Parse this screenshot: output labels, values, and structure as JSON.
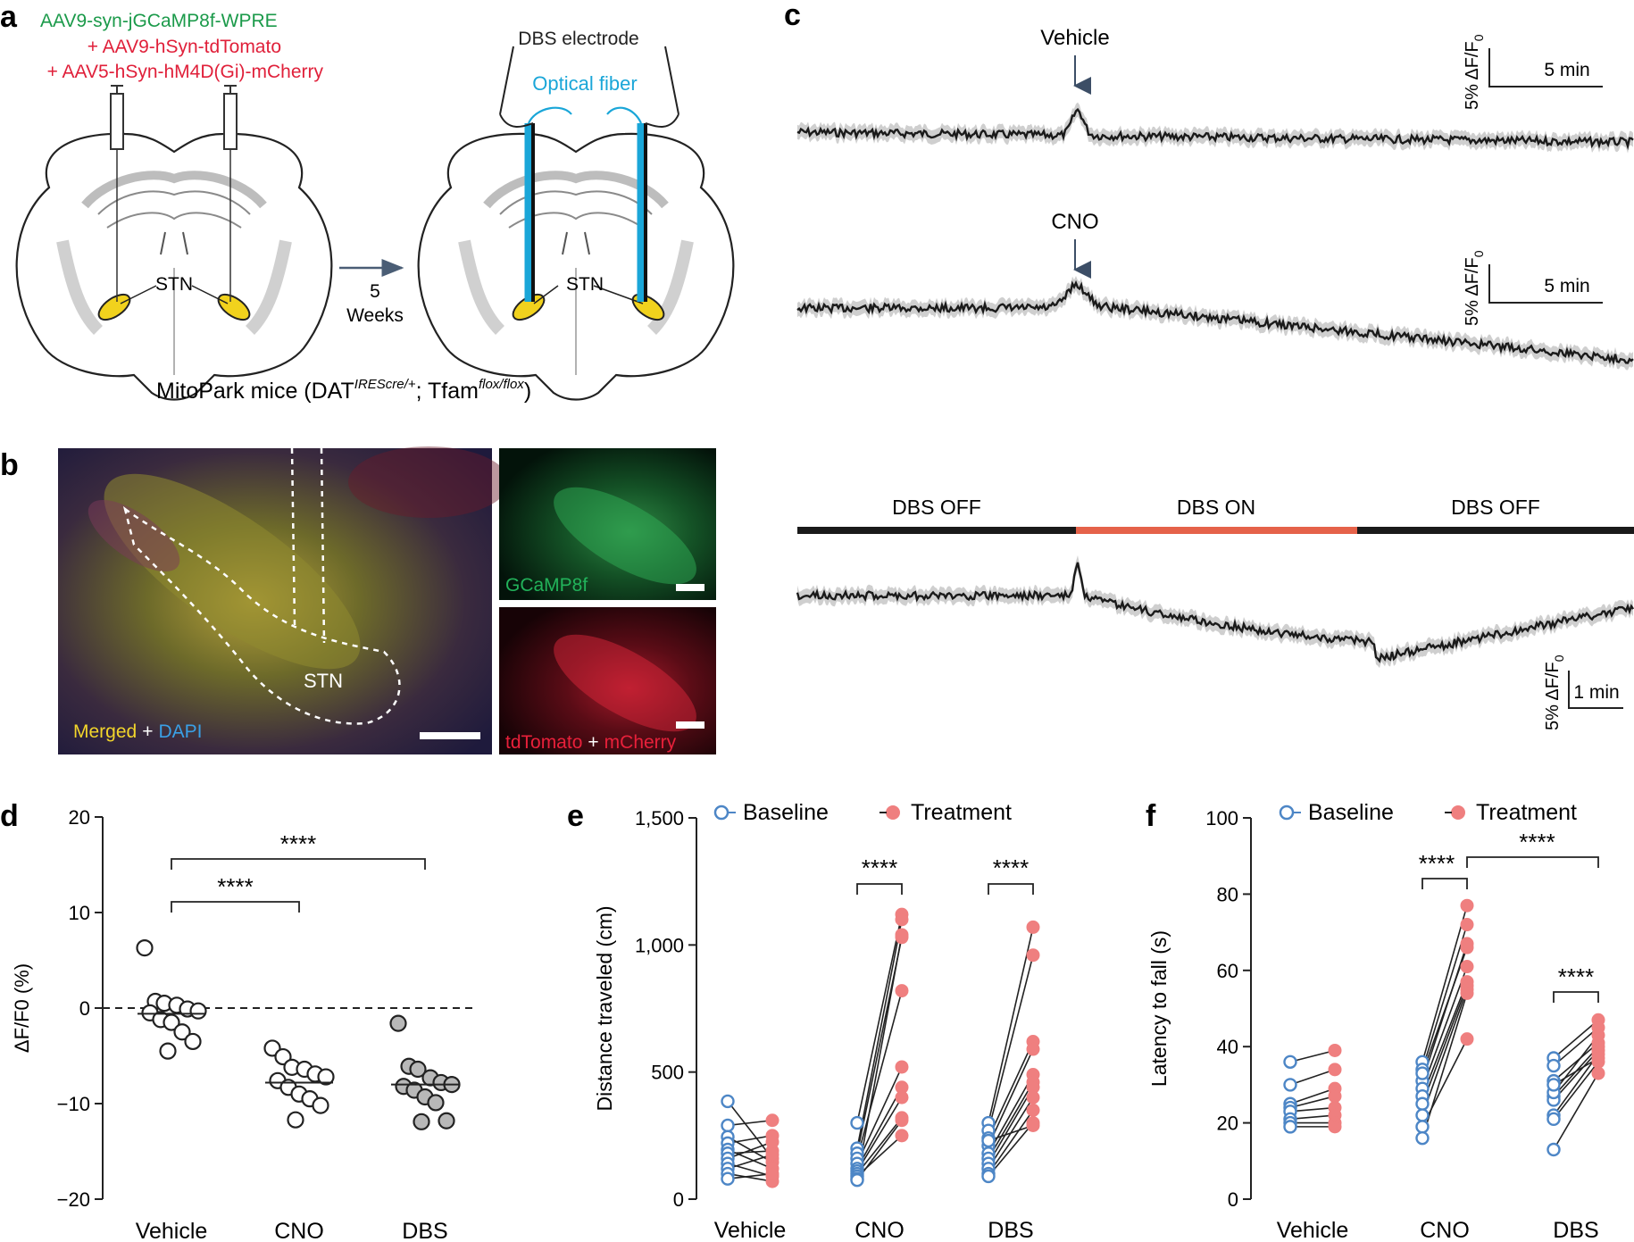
{
  "panel_labels": {
    "a": "a",
    "b": "b",
    "c": "c",
    "d": "d",
    "e": "e",
    "f": "f"
  },
  "panel_a": {
    "virus_1": "AAV9-syn-jGCaMP8f-WPRE",
    "virus_2": "+ AAV9-hSyn-tdTomato",
    "virus_3": "+ AAV5-hSyn-hM4D(Gi)-mCherry",
    "dbs_electrode": "DBS electrode",
    "optical_fiber": "Optical fiber",
    "stn_left": "STN",
    "stn_right": "STN",
    "arrow_num": "5",
    "arrow_unit": "Weeks",
    "mice_prefix": "MitoPark mice (DAT",
    "mice_sup1": "IREScre/+",
    "mice_mid": "; Tfam",
    "mice_sup2": "flox/flox",
    "mice_suffix": ")",
    "colors": {
      "green": "#1b9a4a",
      "red": "#e0203a",
      "cyan": "#1aa6d8",
      "stn": "#f1d21d"
    }
  },
  "panel_b": {
    "stn": "STN",
    "merged": "Merged",
    "plus1": "+",
    "dapi": "DAPI",
    "gcamp": "GCaMP8f",
    "tdtomato": "tdTomato",
    "plus2": "+",
    "mcherry": "mCherry",
    "colors": {
      "merged": "#f2d52b",
      "dapi": "#3aa0e6",
      "gcamp": "#22b25a",
      "tdtomato": "#e8203a"
    }
  },
  "panel_c": {
    "trace1_label": "Vehicle",
    "trace2_label": "CNO",
    "scale_y": "5% ΔF/F",
    "scale_y_sub": "0",
    "scale_x_1": "5 min",
    "scale_x_2": "5 min",
    "scale_x_3": "1 min",
    "dbs_off_1": "DBS OFF",
    "dbs_on": "DBS ON",
    "dbs_off_2": "DBS OFF",
    "colors": {
      "dbs_on_bar": "#e5624a",
      "trace": "#1a1a1a",
      "sem": "#cfcfcf"
    }
  },
  "chart_data": [
    {
      "panel": "d",
      "type": "scatter",
      "categories": [
        "Vehicle",
        "CNO",
        "DBS"
      ],
      "ylabel": "ΔF/F0 (%)",
      "ylim": [
        -20,
        20
      ],
      "yticks": [
        "20",
        "10",
        "0",
        "−10",
        "−20"
      ],
      "series": [
        {
          "category": "Vehicle",
          "fill": "#ffffff",
          "values": [
            6.3,
            0.7,
            0.5,
            0.3,
            -0.1,
            -0.3,
            -0.5,
            -1.2,
            -1.5,
            -2.5,
            -3.5,
            -4.5
          ],
          "mean": -0.6
        },
        {
          "category": "CNO",
          "fill": "#ffffff",
          "values": [
            -4.2,
            -5.1,
            -6.2,
            -6.4,
            -6.9,
            -7.2,
            -7.6,
            -8.3,
            -9.0,
            -9.5,
            -10.2,
            -11.7
          ],
          "mean": -7.8
        },
        {
          "category": "DBS",
          "fill": "#b8b8b8",
          "values": [
            -1.6,
            -6.1,
            -6.4,
            -7.3,
            -7.8,
            -8.0,
            -8.2,
            -8.6,
            -9.3,
            -9.9,
            -11.8,
            -11.9
          ],
          "mean": -8.0
        }
      ],
      "annotations": [
        {
          "pair": [
            "Vehicle",
            "CNO"
          ],
          "label": "****"
        },
        {
          "pair": [
            "Vehicle",
            "DBS"
          ],
          "label": "****"
        }
      ],
      "zero_line": "dashed"
    },
    {
      "panel": "e",
      "type": "line",
      "categories": [
        "Vehicle",
        "CNO",
        "DBS"
      ],
      "ylabel": "Distance traveled (cm)",
      "ylim": [
        0,
        1500
      ],
      "yticks": [
        "1,500",
        "1,000",
        "500",
        "0"
      ],
      "legend": [
        "Baseline",
        "Treatment"
      ],
      "legend_placement": "top",
      "colors": {
        "baseline": "#4d86c6",
        "treatment": "#ef7f7f"
      },
      "paired": [
        {
          "category": "Vehicle",
          "baseline": [
            385,
            290,
            245,
            220,
            195,
            180,
            160,
            140,
            120,
            100,
            80
          ],
          "treatment": [
            160,
            310,
            145,
            250,
            120,
            190,
            225,
            90,
            175,
            70,
            100
          ]
        },
        {
          "category": "CNO",
          "baseline": [
            300,
            200,
            180,
            160,
            140,
            120,
            110,
            100,
            90,
            80,
            75
          ],
          "treatment": [
            1120,
            1100,
            1030,
            820,
            520,
            440,
            400,
            320,
            250,
            1040,
            310
          ]
        },
        {
          "category": "DBS",
          "baseline": [
            300,
            270,
            240,
            210,
            180,
            160,
            140,
            120,
            100,
            90,
            230
          ],
          "treatment": [
            1070,
            960,
            620,
            590,
            490,
            460,
            440,
            400,
            350,
            300,
            290
          ]
        }
      ],
      "annotations": [
        {
          "category": "CNO",
          "label": "****"
        },
        {
          "category": "DBS",
          "label": "****"
        }
      ]
    },
    {
      "panel": "f",
      "type": "line",
      "categories": [
        "Vehicle",
        "CNO",
        "DBS"
      ],
      "ylabel": "Latency to fall (s)",
      "ylim": [
        0,
        100
      ],
      "yticks": [
        "100",
        "80",
        "60",
        "40",
        "20",
        "0"
      ],
      "legend": [
        "Baseline",
        "Treatment"
      ],
      "legend_placement": "top",
      "colors": {
        "baseline": "#4d86c6",
        "treatment": "#ef7f7f"
      },
      "paired": [
        {
          "category": "Vehicle",
          "baseline": [
            36,
            30,
            25,
            24,
            23,
            21,
            20,
            19
          ],
          "treatment": [
            39,
            34,
            29,
            27,
            24,
            22,
            20,
            19
          ]
        },
        {
          "category": "CNO",
          "baseline": [
            36,
            34,
            31,
            29,
            27,
            25,
            22,
            19,
            16,
            33
          ],
          "treatment": [
            77,
            72,
            67,
            61,
            57,
            56,
            55,
            42,
            54,
            66
          ]
        },
        {
          "category": "DBS",
          "baseline": [
            37,
            35,
            31,
            27,
            26,
            22,
            21,
            13,
            28,
            30
          ],
          "treatment": [
            47,
            45,
            41,
            40,
            39,
            38,
            36,
            33,
            43,
            37
          ]
        }
      ],
      "annotations": [
        {
          "category": "CNO",
          "label": "****"
        },
        {
          "pair": [
            "CNO",
            "DBS"
          ],
          "label": "****"
        },
        {
          "category": "DBS",
          "label": "****"
        }
      ]
    }
  ]
}
